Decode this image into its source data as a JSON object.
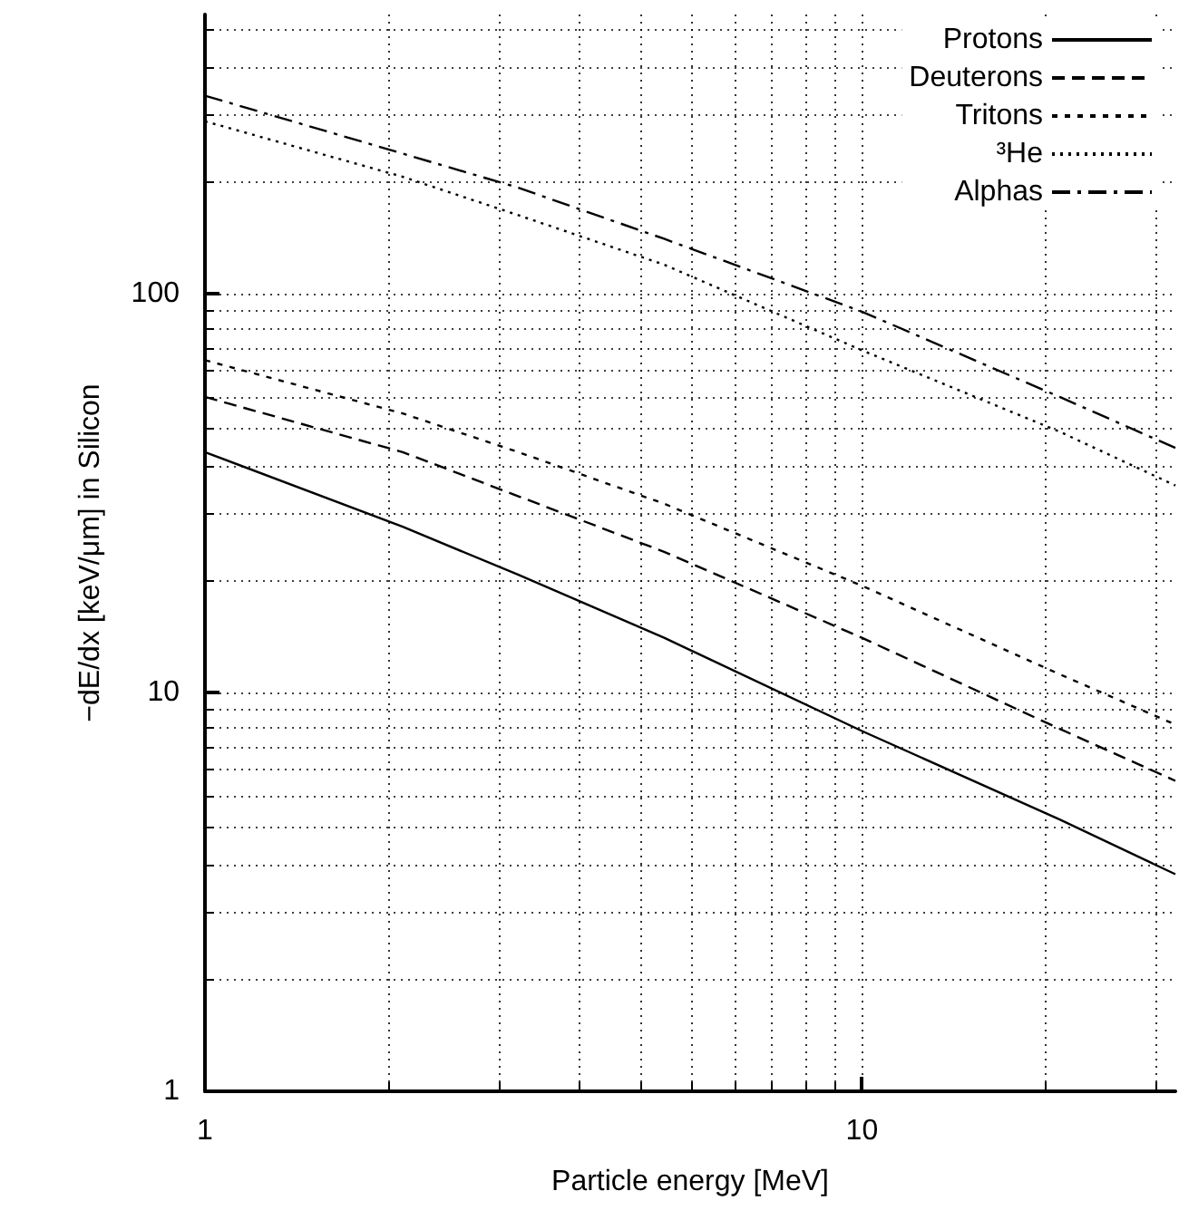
{
  "chart_data": {
    "type": "line",
    "xlabel": "Particle energy [MeV]",
    "ylabel": "−dE/dx [keV/μm] in Silicon",
    "x": [
      1,
      2,
      3,
      5,
      10,
      20,
      30
    ],
    "series": [
      {
        "name": "Protons",
        "color": "#000000",
        "line_style": "solid",
        "values": [
          40,
          26,
          19.7,
          13.7,
          8.0,
          4.8,
          3.5
        ]
      },
      {
        "name": "Deuterons",
        "color": "#000000",
        "line_style": "dashed",
        "values": [
          55,
          40,
          31,
          22.5,
          13.7,
          8.1,
          6.0
        ]
      },
      {
        "name": "Tritons",
        "color": "#000000",
        "line_style": "dashed",
        "values": [
          68,
          50,
          40,
          29.7,
          18.5,
          11.1,
          8.3
        ]
      },
      {
        "name": "³He",
        "color": "#000000",
        "line_style": "dotted",
        "values": [
          270,
          196,
          157,
          118,
          72,
          45,
          33
        ]
      },
      {
        "name": "Alphas",
        "color": "#000000",
        "line_style": "dashdot",
        "values": [
          313,
          224,
          184,
          137,
          90,
          55,
          41
        ]
      }
    ],
    "log": "xy",
    "xlim": [
      1,
      30
    ],
    "ylim": [
      1,
      500
    ],
    "xticks": [
      1,
      10
    ],
    "yticks": [
      1,
      10,
      100
    ],
    "grid": true,
    "legend": "top right",
    "marker": "none"
  }
}
